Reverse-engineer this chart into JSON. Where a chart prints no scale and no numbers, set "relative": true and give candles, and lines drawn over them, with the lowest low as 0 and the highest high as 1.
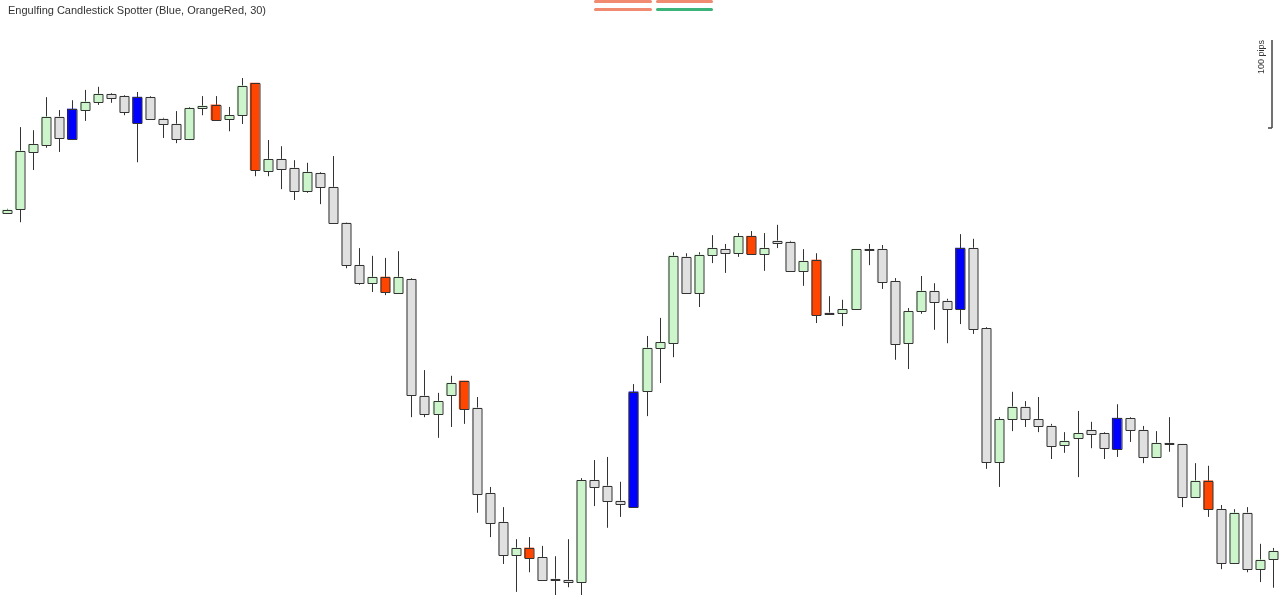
{
  "chart_data": {
    "type": "candlestick",
    "title": "Engulfing Candlestick Spotter (Blue, OrangeRed, 30)",
    "relative": true,
    "annotations": [
      "100 pips"
    ],
    "categories": [
      null,
      null,
      null,
      null,
      null,
      null,
      null,
      null,
      null,
      null,
      null,
      null,
      null,
      null,
      null,
      null,
      null,
      null,
      null,
      null,
      null,
      null,
      null,
      null,
      null,
      null,
      null,
      null,
      null,
      null,
      null,
      null,
      null,
      null,
      null,
      null,
      null,
      null,
      null,
      null,
      null,
      null,
      null,
      null,
      null,
      null,
      null,
      null,
      null,
      null,
      null,
      null,
      null,
      null,
      null,
      null,
      null,
      null,
      null,
      null,
      null,
      null,
      null,
      null,
      null,
      null,
      null,
      null,
      null,
      null,
      null,
      null,
      null,
      null,
      null,
      null,
      null,
      null,
      null,
      null,
      null,
      null,
      null,
      null,
      null,
      null,
      null,
      null,
      null,
      null,
      null,
      null,
      null,
      null,
      null,
      null,
      null,
      null
    ],
    "ohlc": [
      [
        0.739,
        0.747,
        0.737,
        0.745
      ],
      [
        0.747,
        0.905,
        0.721,
        0.859
      ],
      [
        0.857,
        0.899,
        0.822,
        0.872
      ],
      [
        0.87,
        0.963,
        0.865,
        0.925
      ],
      [
        0.925,
        0.938,
        0.857,
        0.884
      ],
      [
        0.882,
        0.957,
        0.88,
        0.94
      ],
      [
        0.938,
        0.977,
        0.917,
        0.954
      ],
      [
        0.954,
        0.983,
        0.948,
        0.969
      ],
      [
        0.969,
        0.971,
        0.952,
        0.961
      ],
      [
        0.965,
        0.967,
        0.928,
        0.934
      ],
      [
        0.913,
        0.973,
        0.837,
        0.963
      ],
      [
        0.963,
        0.965,
        0.919,
        0.921
      ],
      [
        0.921,
        0.923,
        0.884,
        0.911
      ],
      [
        0.911,
        0.936,
        0.874,
        0.882
      ],
      [
        0.882,
        0.944,
        0.88,
        0.942
      ],
      [
        0.942,
        0.965,
        0.928,
        0.946
      ],
      [
        0.948,
        0.965,
        0.919,
        0.919
      ],
      [
        0.921,
        0.944,
        0.897,
        0.928
      ],
      [
        0.928,
        1.0,
        0.911,
        0.985
      ],
      [
        0.99,
        0.99,
        0.81,
        0.822
      ],
      [
        0.82,
        0.88,
        0.81,
        0.843
      ],
      [
        0.843,
        0.868,
        0.785,
        0.824
      ],
      [
        0.826,
        0.841,
        0.764,
        0.781
      ],
      [
        0.781,
        0.836,
        0.778,
        0.818
      ],
      [
        0.816,
        0.818,
        0.756,
        0.789
      ],
      [
        0.789,
        0.849,
        0.72,
        0.72
      ],
      [
        0.72,
        0.721,
        0.632,
        0.638
      ],
      [
        0.638,
        0.671,
        0.6,
        0.603
      ],
      [
        0.603,
        0.656,
        0.586,
        0.615
      ],
      [
        0.615,
        0.652,
        0.58,
        0.586
      ],
      [
        0.584,
        0.665,
        0.584,
        0.615
      ],
      [
        0.611,
        0.613,
        0.344,
        0.387
      ],
      [
        0.385,
        0.435,
        0.344,
        0.35
      ],
      [
        0.35,
        0.391,
        0.304,
        0.375
      ],
      [
        0.387,
        0.424,
        0.325,
        0.41
      ],
      [
        0.414,
        0.414,
        0.331,
        0.36
      ],
      [
        0.362,
        0.383,
        0.159,
        0.195
      ],
      [
        0.197,
        0.209,
        0.112,
        0.139
      ],
      [
        0.141,
        0.17,
        0.06,
        0.077
      ],
      [
        0.077,
        0.108,
        0.006,
        0.091
      ],
      [
        0.091,
        0.112,
        0.044,
        0.072
      ],
      [
        0.073,
        0.095,
        0.029,
        0.029
      ],
      [
        0.031,
        0.075,
        0,
        0.029
      ],
      [
        0.029,
        0.108,
        0.015,
        0.025
      ],
      [
        0.025,
        0.226,
        0,
        0.222
      ],
      [
        0.222,
        0.261,
        0.172,
        0.209
      ],
      [
        0.211,
        0.267,
        0.13,
        0.182
      ],
      [
        0.182,
        0.219,
        0.151,
        0.176
      ],
      [
        0.17,
        0.408,
        0.17,
        0.393
      ],
      [
        0.395,
        0.501,
        0.346,
        0.478
      ],
      [
        0.478,
        0.536,
        0.41,
        0.489
      ],
      [
        0.487,
        0.663,
        0.46,
        0.656
      ],
      [
        0.654,
        0.661,
        0.584,
        0.584
      ],
      [
        0.584,
        0.663,
        0.557,
        0.658
      ],
      [
        0.658,
        0.696,
        0.642,
        0.671
      ],
      [
        0.669,
        0.679,
        0.623,
        0.661
      ],
      [
        0.661,
        0.7,
        0.654,
        0.694
      ],
      [
        0.694,
        0.704,
        0.66,
        0.66
      ],
      [
        0.66,
        0.7,
        0.627,
        0.671
      ],
      [
        0.685,
        0.716,
        0.671,
        0.681
      ],
      [
        0.683,
        0.685,
        0.625,
        0.627
      ],
      [
        0.627,
        0.669,
        0.598,
        0.646
      ],
      [
        0.648,
        0.661,
        0.526,
        0.542
      ],
      [
        0.545,
        0.578,
        0.544,
        0.544
      ],
      [
        0.545,
        0.571,
        0.52,
        0.553
      ],
      [
        0.553,
        0.669,
        0.553,
        0.669
      ],
      [
        0.669,
        0.679,
        0.638,
        0.667
      ],
      [
        0.669,
        0.677,
        0.592,
        0.605
      ],
      [
        0.607,
        0.613,
        0.455,
        0.485
      ],
      [
        0.487,
        0.555,
        0.437,
        0.549
      ],
      [
        0.549,
        0.617,
        0.544,
        0.588
      ],
      [
        0.588,
        0.603,
        0.513,
        0.567
      ],
      [
        0.569,
        0.573,
        0.487,
        0.553
      ],
      [
        0.553,
        0.698,
        0.524,
        0.671
      ],
      [
        0.671,
        0.689,
        0.505,
        0.515
      ],
      [
        0.516,
        0.518,
        0.244,
        0.257
      ],
      [
        0.257,
        0.344,
        0.209,
        0.34
      ],
      [
        0.34,
        0.393,
        0.317,
        0.364
      ],
      [
        0.364,
        0.375,
        0.325,
        0.34
      ],
      [
        0.34,
        0.383,
        0.315,
        0.327
      ],
      [
        0.327,
        0.331,
        0.263,
        0.288
      ],
      [
        0.29,
        0.315,
        0.275,
        0.298
      ],
      [
        0.304,
        0.356,
        0.228,
        0.313
      ],
      [
        0.319,
        0.335,
        0.284,
        0.311
      ],
      [
        0.313,
        0.315,
        0.263,
        0.284
      ],
      [
        0.282,
        0.369,
        0.267,
        0.342
      ],
      [
        0.342,
        0.344,
        0.296,
        0.319
      ],
      [
        0.319,
        0.327,
        0.255,
        0.267
      ],
      [
        0.267,
        0.317,
        0.267,
        0.294
      ],
      [
        0.294,
        0.344,
        0.277,
        0.292
      ],
      [
        0.292,
        0.292,
        0.17,
        0.19
      ],
      [
        0.19,
        0.255,
        0.19,
        0.221
      ],
      [
        0.221,
        0.25,
        0.151,
        0.166
      ],
      [
        0.166,
        0.174,
        0.05,
        0.062
      ],
      [
        0.062,
        0.166,
        0.062,
        0.159
      ],
      [
        0.159,
        0.17,
        0.044,
        0.05
      ],
      [
        0.05,
        0.099,
        0.025,
        0.068
      ],
      [
        0.07,
        0.091,
        0.014,
        0.085
      ]
    ],
    "colors": [
      "#ccf5cc",
      "#ccf5cc",
      "#ccf5cc",
      "#ccf5cc",
      "#e0e0e0",
      "#0000ff",
      "#ccf5cc",
      "#ccf5cc",
      "#e0e0e0",
      "#e0e0e0",
      "#0000ff",
      "#e0e0e0",
      "#e0e0e0",
      "#e0e0e0",
      "#ccf5cc",
      "#ccf5cc",
      "#ff4500",
      "#ccf5cc",
      "#ccf5cc",
      "#ff4500",
      "#ccf5cc",
      "#e0e0e0",
      "#e0e0e0",
      "#ccf5cc",
      "#e0e0e0",
      "#e0e0e0",
      "#e0e0e0",
      "#e0e0e0",
      "#ccf5cc",
      "#ff4500",
      "#ccf5cc",
      "#e0e0e0",
      "#e0e0e0",
      "#ccf5cc",
      "#ccf5cc",
      "#ff4500",
      "#e0e0e0",
      "#e0e0e0",
      "#e0e0e0",
      "#ccf5cc",
      "#ff4500",
      "#e0e0e0",
      "#e0e0e0",
      "#e0e0e0",
      "#ccf5cc",
      "#e0e0e0",
      "#e0e0e0",
      "#e0e0e0",
      "#0000ff",
      "#ccf5cc",
      "#ccf5cc",
      "#ccf5cc",
      "#e0e0e0",
      "#ccf5cc",
      "#ccf5cc",
      "#e0e0e0",
      "#ccf5cc",
      "#ff4500",
      "#ccf5cc",
      "#e0e0e0",
      "#e0e0e0",
      "#ccf5cc",
      "#ff4500",
      "#e0e0e0",
      "#ccf5cc",
      "#ccf5cc",
      "#e0e0e0",
      "#e0e0e0",
      "#e0e0e0",
      "#ccf5cc",
      "#ccf5cc",
      "#e0e0e0",
      "#e0e0e0",
      "#0000ff",
      "#e0e0e0",
      "#e0e0e0",
      "#ccf5cc",
      "#ccf5cc",
      "#e0e0e0",
      "#e0e0e0",
      "#e0e0e0",
      "#ccf5cc",
      "#ccf5cc",
      "#e0e0e0",
      "#e0e0e0",
      "#0000ff",
      "#e0e0e0",
      "#e0e0e0",
      "#ccf5cc",
      "#e0e0e0",
      "#e0e0e0",
      "#ccf5cc",
      "#ff4500",
      "#e0e0e0",
      "#ccf5cc",
      "#e0e0e0",
      "#ccf5cc",
      "#ccf5cc"
    ]
  }
}
